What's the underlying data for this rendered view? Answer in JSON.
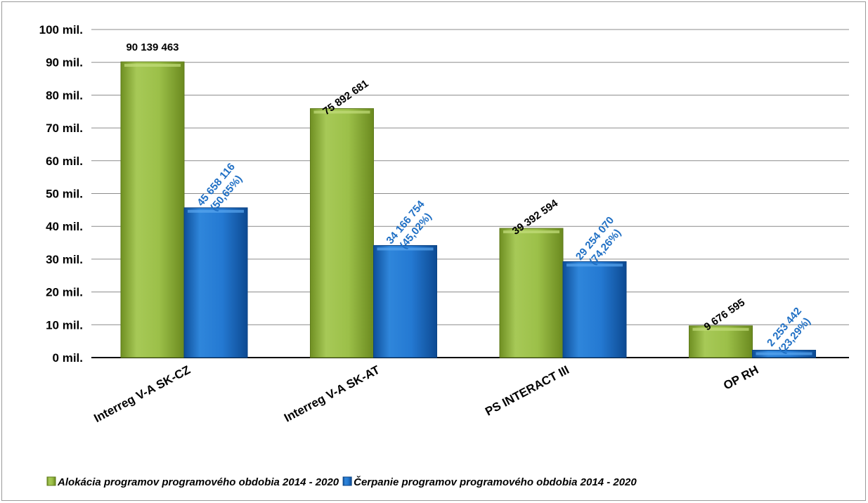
{
  "chart_data": {
    "type": "bar",
    "categories": [
      "Interreg V-A SK-CZ",
      "Interreg V-A SK-AT",
      "PS INTERACT III",
      "OP RH"
    ],
    "series": [
      {
        "name": "Alokácia programov programového obdobia 2014 - 2020",
        "values": [
          90139463,
          75892681,
          39392594,
          9676595
        ],
        "labels": [
          "90 139 463",
          "75 892 681",
          "39 392 594",
          "9 676 595"
        ],
        "color": "#8fb33a"
      },
      {
        "name": "Čerpanie programov programového obdobia 2014 - 2020",
        "values": [
          45658116,
          34166754,
          29254070,
          2253442
        ],
        "labels": [
          "45 658 116",
          "34 166 754",
          "29 254 070",
          "2 253 442"
        ],
        "percent_labels": [
          "(50,65%)",
          "(45,02%)",
          "(74,26%)",
          "(23,29%)"
        ],
        "color": "#1f6fc4"
      }
    ],
    "ylim": [
      0,
      100000000
    ],
    "yticks": [
      0,
      10000000,
      20000000,
      30000000,
      40000000,
      50000000,
      60000000,
      70000000,
      80000000,
      90000000,
      100000000
    ],
    "ytick_labels": [
      "0 mil.",
      "10 mil.",
      "20 mil.",
      "30 mil.",
      "40 mil.",
      "50 mil.",
      "60 mil.",
      "70 mil.",
      "80 mil.",
      "90 mil.",
      "100 mil."
    ],
    "grid": true,
    "legend_position": "bottom-left"
  }
}
